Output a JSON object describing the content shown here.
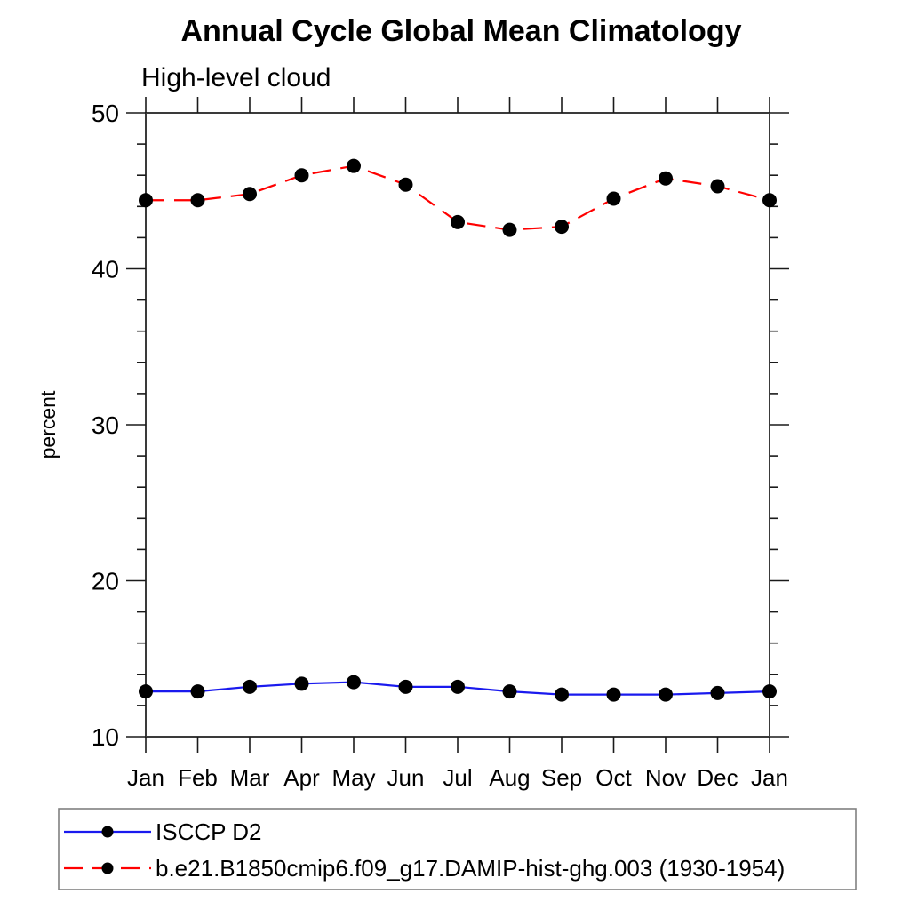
{
  "title": "Annual Cycle Global Mean Climatology",
  "subtitle": "High-level cloud",
  "ylabel": "percent",
  "chart_data": {
    "type": "line",
    "categories": [
      "Jan",
      "Feb",
      "Mar",
      "Apr",
      "May",
      "Jun",
      "Jul",
      "Aug",
      "Sep",
      "Oct",
      "Nov",
      "Dec",
      "Jan"
    ],
    "series": [
      {
        "name": "ISCCP D2",
        "color": "#1a1aee",
        "line_style": "solid",
        "marker": "filled-circle",
        "marker_color": "#000000",
        "values": [
          12.9,
          12.9,
          13.2,
          13.4,
          13.5,
          13.2,
          13.2,
          12.9,
          12.7,
          12.7,
          12.7,
          12.8,
          12.9
        ]
      },
      {
        "name": "b.e21.B1850cmip6.f09_g17.DAMIP-hist-ghg.003 (1930-1954)",
        "color": "#ff0000",
        "line_style": "dashed",
        "marker": "filled-circle",
        "marker_color": "#000000",
        "values": [
          44.4,
          44.4,
          44.8,
          46.0,
          46.6,
          45.4,
          43.0,
          42.5,
          42.7,
          44.5,
          45.8,
          45.3,
          44.4
        ]
      }
    ],
    "xlabel": "",
    "ylabel": "percent",
    "ylim": [
      10,
      50
    ],
    "yticks_major": [
      10,
      20,
      30,
      40,
      50
    ],
    "ytick_minor_step": 2,
    "grid": false,
    "legend_position": "bottom",
    "axis_color": "#3a3a3a",
    "tick_color": "#1a1a1a",
    "legend_border_color": "#808080"
  }
}
